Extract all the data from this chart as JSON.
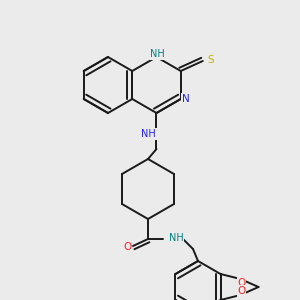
{
  "background_color": "#ebebeb",
  "bond_color": "#1a1a1a",
  "n_color": "#2020ff",
  "o_color": "#ff2020",
  "s_color": "#c8b400",
  "nh_color": "#008080",
  "line_width": 1.4,
  "figsize": [
    3.0,
    3.0
  ],
  "dpi": 100,
  "atoms": {
    "NH_quinaz": {
      "label": "NH",
      "color": "#008080"
    },
    "N_quinaz": {
      "label": "N",
      "color": "#2020ff"
    },
    "S_thione": {
      "label": "S",
      "color": "#c8b400"
    },
    "NH_link": {
      "label": "NH",
      "color": "#2020ff"
    },
    "O_amide": {
      "label": "O",
      "color": "#ff2020"
    },
    "NH_amide": {
      "label": "NH",
      "color": "#008080"
    },
    "O1_diox": {
      "label": "O",
      "color": "#ff2020"
    },
    "O2_diox": {
      "label": "O",
      "color": "#ff2020"
    }
  }
}
